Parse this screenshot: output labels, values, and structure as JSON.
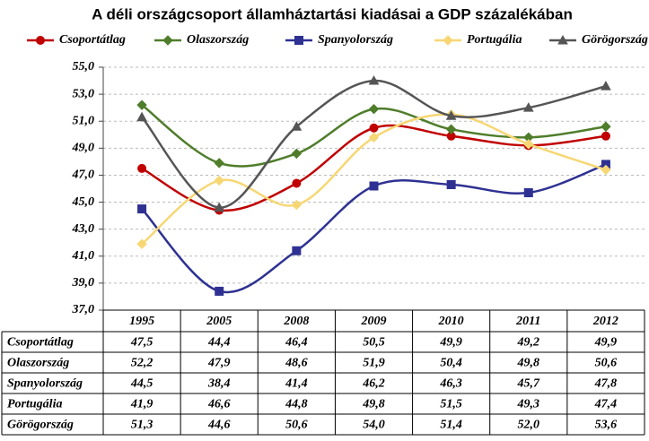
{
  "chart_data": {
    "type": "line",
    "title": "A déli országcsoport államháztartási kiadásai a GDP százalékában",
    "categories": [
      "1995",
      "2005",
      "2008",
      "2009",
      "2010",
      "2011",
      "2012"
    ],
    "series": [
      {
        "name": "Csoportátlag",
        "color": "#c00000",
        "marker": "circle",
        "values": [
          47.5,
          44.4,
          46.4,
          50.5,
          49.9,
          49.2,
          49.9
        ],
        "value_labels": [
          "47,5",
          "44,4",
          "46,4",
          "50,5",
          "49,9",
          "49,2",
          "49,9"
        ]
      },
      {
        "name": "Olaszország",
        "color": "#4f7d2b",
        "marker": "diamond",
        "values": [
          52.2,
          47.9,
          48.6,
          51.9,
          50.4,
          49.8,
          50.6
        ],
        "value_labels": [
          "52,2",
          "47,9",
          "48,6",
          "51,9",
          "50,4",
          "49,8",
          "50,6"
        ]
      },
      {
        "name": "Spanyolország",
        "color": "#2e3192",
        "marker": "square",
        "values": [
          44.5,
          38.4,
          41.4,
          46.2,
          46.3,
          45.7,
          47.8
        ],
        "value_labels": [
          "44,5",
          "38,4",
          "41,4",
          "46,2",
          "46,3",
          "45,7",
          "47,8"
        ]
      },
      {
        "name": "Portugália",
        "color": "#f7d774",
        "marker": "diamond",
        "values": [
          41.9,
          46.6,
          44.8,
          49.8,
          51.5,
          49.3,
          47.4
        ],
        "value_labels": [
          "41,9",
          "46,6",
          "44,8",
          "49,8",
          "51,5",
          "49,3",
          "47,4"
        ]
      },
      {
        "name": "Görögország",
        "color": "#555555",
        "marker": "triangle",
        "values": [
          51.3,
          44.6,
          50.6,
          54.0,
          51.4,
          52.0,
          53.6
        ],
        "value_labels": [
          "51,3",
          "44,6",
          "50,6",
          "54,0",
          "51,4",
          "52,0",
          "53,6"
        ]
      }
    ],
    "ylim": [
      37,
      55
    ],
    "yticks": [
      {
        "value": 37,
        "label": "37,0"
      },
      {
        "value": 39,
        "label": "39,0"
      },
      {
        "value": 41,
        "label": "41,0"
      },
      {
        "value": 43,
        "label": "43,0"
      },
      {
        "value": 45,
        "label": "45,0"
      },
      {
        "value": 47,
        "label": "47,0"
      },
      {
        "value": 49,
        "label": "49,0"
      },
      {
        "value": 51,
        "label": "51,0"
      },
      {
        "value": 53,
        "label": "53,0"
      },
      {
        "value": 55,
        "label": "55,0"
      }
    ],
    "grid": true
  }
}
